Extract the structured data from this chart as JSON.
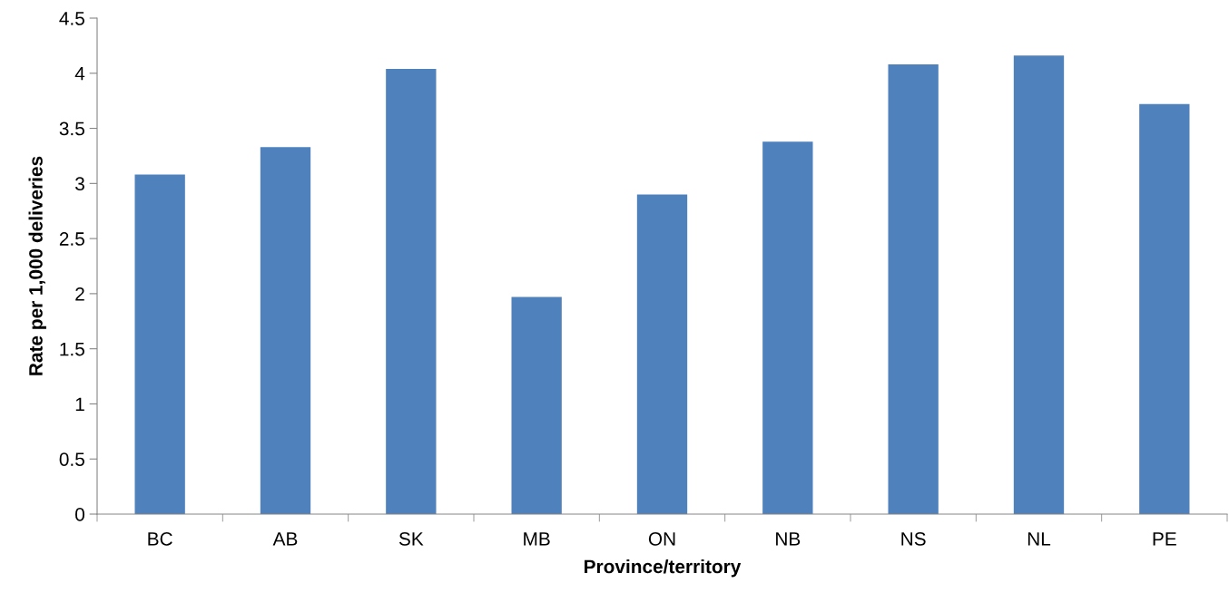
{
  "chart_data": {
    "type": "bar",
    "xlabel": "Province/territory",
    "ylabel": "Rate per 1,000 deliveries",
    "categories": [
      "BC",
      "AB",
      "SK",
      "MB",
      "ON",
      "NB",
      "NS",
      "NL",
      "PE"
    ],
    "values": [
      3.08,
      3.33,
      4.04,
      1.97,
      2.9,
      3.38,
      4.08,
      4.16,
      3.72
    ],
    "color": "#4f81bd",
    "ylim": [
      0,
      4.5
    ],
    "yticks": [
      0,
      0.5,
      1,
      1.5,
      2,
      2.5,
      3,
      3.5,
      4,
      4.5
    ],
    "grid": false
  }
}
